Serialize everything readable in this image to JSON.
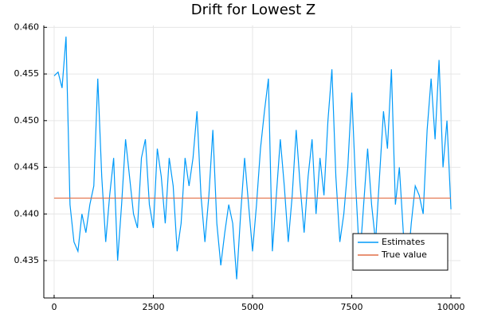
{
  "chart_data": {
    "type": "line",
    "title": "Drift for Lowest Z",
    "xlim": [
      -260,
      10240
    ],
    "xticks": [
      0,
      2500,
      5000,
      7500,
      10000
    ],
    "ylim": [
      0.431,
      0.4602
    ],
    "yticks": [
      0.435,
      {
        "value": 0.44,
        "label": "0.440"
      },
      0.445,
      {
        "value": 0.45,
        "label": "0.450"
      },
      0.455,
      {
        "value": 0.46,
        "label": "0.460"
      }
    ],
    "grid": true,
    "legend": "bottomright",
    "series": [
      {
        "name": "Estimates",
        "color": "#009af9",
        "x": [
          0,
          100,
          200,
          300,
          400,
          500,
          600,
          700,
          800,
          900,
          1000,
          1100,
          1200,
          1300,
          1400,
          1500,
          1600,
          1700,
          1800,
          1900,
          2000,
          2100,
          2200,
          2300,
          2400,
          2500,
          2600,
          2700,
          2800,
          2900,
          3000,
          3100,
          3200,
          3300,
          3400,
          3500,
          3600,
          3700,
          3800,
          3900,
          4000,
          4100,
          4200,
          4300,
          4400,
          4500,
          4600,
          4700,
          4800,
          4900,
          5000,
          5100,
          5200,
          5300,
          5400,
          5500,
          5600,
          5700,
          5800,
          5900,
          6000,
          6100,
          6200,
          6300,
          6400,
          6500,
          6600,
          6700,
          6800,
          6900,
          7000,
          7100,
          7200,
          7300,
          7400,
          7500,
          7600,
          7700,
          7800,
          7900,
          8000,
          8100,
          8200,
          8300,
          8400,
          8500,
          8600,
          8700,
          8800,
          8900,
          9000,
          9100,
          9200,
          9300,
          9400,
          9500,
          9600,
          9700,
          9800,
          9900,
          10000
        ],
        "values": [
          0.4548,
          0.4552,
          0.4535,
          0.459,
          0.441,
          0.437,
          0.436,
          0.44,
          0.438,
          0.441,
          0.443,
          0.4545,
          0.444,
          0.437,
          0.442,
          0.446,
          0.435,
          0.441,
          0.448,
          0.444,
          0.44,
          0.4385,
          0.446,
          0.448,
          0.441,
          0.4385,
          0.447,
          0.444,
          0.439,
          0.446,
          0.443,
          0.436,
          0.439,
          0.446,
          0.443,
          0.446,
          0.451,
          0.442,
          0.437,
          0.442,
          0.449,
          0.439,
          0.4345,
          0.438,
          0.441,
          0.439,
          0.433,
          0.44,
          0.446,
          0.441,
          0.436,
          0.441,
          0.447,
          0.451,
          0.4545,
          0.436,
          0.442,
          0.448,
          0.443,
          0.437,
          0.442,
          0.449,
          0.443,
          0.438,
          0.444,
          0.448,
          0.44,
          0.446,
          0.442,
          0.45,
          0.4555,
          0.444,
          0.437,
          0.44,
          0.445,
          0.453,
          0.443,
          0.435,
          0.441,
          0.447,
          0.441,
          0.437,
          0.444,
          0.451,
          0.447,
          0.4555,
          0.441,
          0.445,
          0.438,
          0.434,
          0.439,
          0.443,
          0.442,
          0.44,
          0.449,
          0.4545,
          0.448,
          0.4565,
          0.445,
          0.45,
          0.4405
        ]
      },
      {
        "name": "True value",
        "color": "#e26f46",
        "x": [
          0,
          10000
        ],
        "values": [
          0.4417,
          0.4417
        ]
      }
    ]
  }
}
